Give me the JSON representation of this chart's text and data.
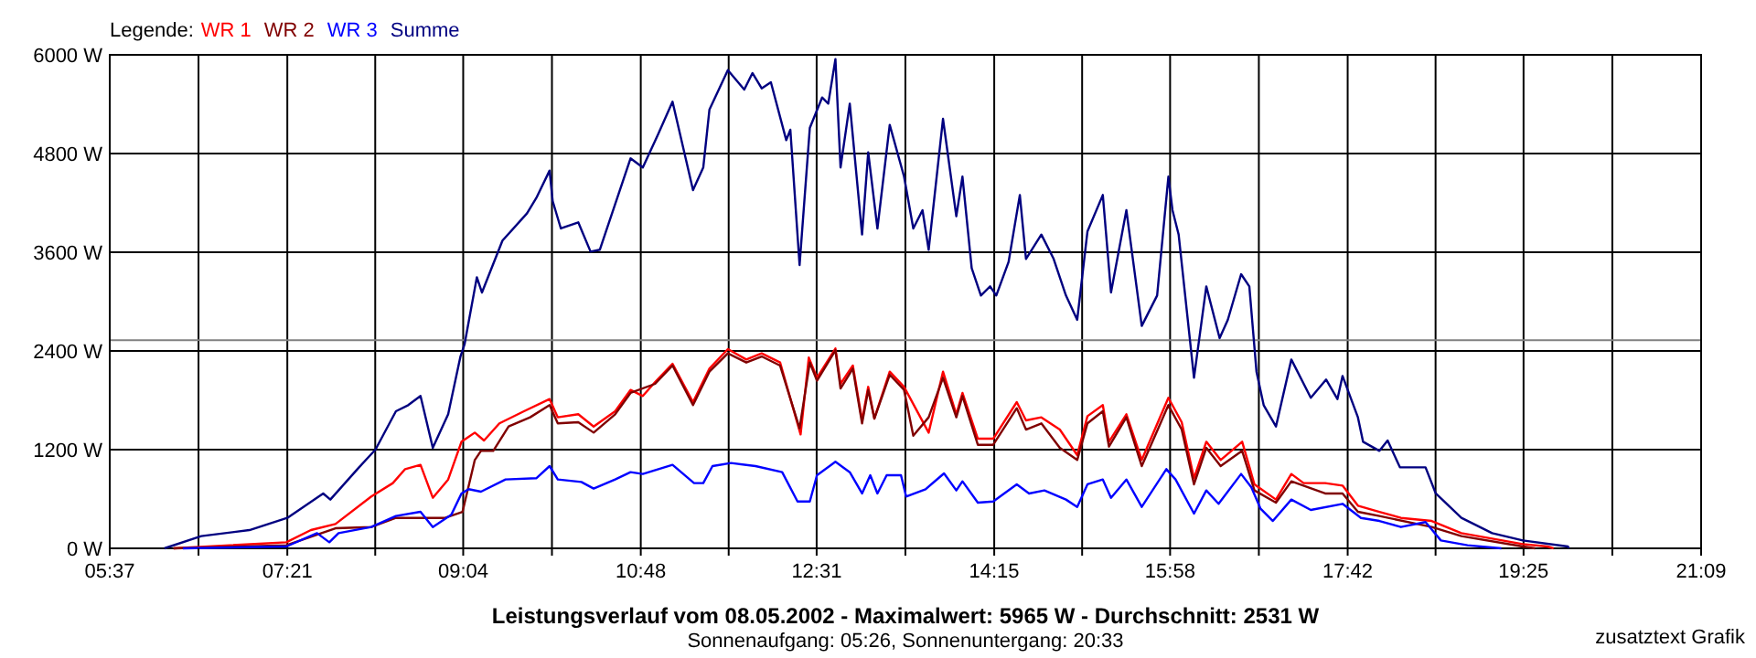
{
  "chart_data": {
    "type": "line",
    "title": "Leistungsverlauf vom 08.05.2002 - Maximalwert: 5965 W - Durchschnitt: 2531 W",
    "subtitle": "Sonnenaufgang: 05:26, Sonnenuntergang: 20:33",
    "annotations": [
      "zusatztext Grafik"
    ],
    "legend_title": "Legende:",
    "legend": "top left",
    "grid": true,
    "xlim": [
      5.6167,
      21.15
    ],
    "xticks": [
      {
        "value": 5.6167,
        "label": "05:37"
      },
      {
        "value": 6.483,
        "label": null
      },
      {
        "value": 7.35,
        "label": "07:21"
      },
      {
        "value": 8.208,
        "label": null
      },
      {
        "value": 9.0667,
        "label": "09:04"
      },
      {
        "value": 9.933,
        "label": null
      },
      {
        "value": 10.8,
        "label": "10:48"
      },
      {
        "value": 11.658,
        "label": null
      },
      {
        "value": 12.5167,
        "label": "12:31"
      },
      {
        "value": 13.383,
        "label": null
      },
      {
        "value": 14.25,
        "label": "14:15"
      },
      {
        "value": 15.108,
        "label": null
      },
      {
        "value": 15.9667,
        "label": "15:58"
      },
      {
        "value": 16.833,
        "label": null
      },
      {
        "value": 17.7,
        "label": "17:42"
      },
      {
        "value": 18.558,
        "label": null
      },
      {
        "value": 19.4167,
        "label": "19:25"
      },
      {
        "value": 20.283,
        "label": null
      },
      {
        "value": 21.15,
        "label": "21:09"
      }
    ],
    "ylim": [
      0,
      6000
    ],
    "yticks": [
      {
        "value": 0,
        "label": "0 W"
      },
      {
        "value": 1200,
        "label": "1200 W"
      },
      {
        "value": 2400,
        "label": "2400 W"
      },
      {
        "value": 3600,
        "label": "3600 W"
      },
      {
        "value": 4800,
        "label": "4800 W"
      },
      {
        "value": 6000,
        "label": "6000 W"
      }
    ],
    "ref_lines": [
      {
        "axis": "y",
        "value": 2531,
        "color": "#808080"
      }
    ],
    "series": [
      {
        "name": "WR 1",
        "color": "#ff0000",
        "x": [
          6.24,
          7.34,
          7.58,
          7.82,
          8.17,
          8.38,
          8.5,
          8.65,
          8.77,
          8.92,
          9.05,
          9.18,
          9.27,
          9.42,
          9.66,
          9.91,
          9.99,
          10.19,
          10.34,
          10.55,
          10.7,
          10.82,
          10.94,
          11.11,
          11.31,
          11.47,
          11.65,
          11.83,
          11.98,
          12.16,
          12.36,
          12.44,
          12.52,
          12.7,
          12.75,
          12.87,
          12.96,
          13.02,
          13.08,
          13.23,
          13.37,
          13.61,
          13.75,
          13.88,
          13.94,
          14.09,
          14.24,
          14.47,
          14.56,
          14.71,
          14.89,
          15.06,
          15.16,
          15.31,
          15.37,
          15.54,
          15.69,
          15.95,
          16.08,
          16.2,
          16.32,
          16.46,
          16.67,
          16.79,
          17.0,
          17.15,
          17.27,
          17.48,
          17.65,
          17.8,
          18.01,
          18.22,
          18.52,
          18.81,
          19.41,
          19.65,
          19.71
        ],
        "values": [
          0,
          74,
          222,
          296,
          630,
          793,
          963,
          1015,
          615,
          837,
          1296,
          1407,
          1311,
          1519,
          1667,
          1815,
          1593,
          1630,
          1481,
          1667,
          1926,
          1852,
          2022,
          2244,
          1778,
          2185,
          2422,
          2296,
          2370,
          2259,
          1385,
          2319,
          2074,
          2430,
          2000,
          2222,
          1556,
          1963,
          1578,
          2148,
          1963,
          1407,
          2148,
          1630,
          1889,
          1333,
          1333,
          1778,
          1556,
          1593,
          1444,
          1133,
          1607,
          1741,
          1296,
          1630,
          1074,
          1830,
          1533,
          852,
          1296,
          1074,
          1296,
          778,
          593,
          904,
          793,
          793,
          763,
          519,
          444,
          370,
          333,
          185,
          52,
          22,
          0
        ]
      },
      {
        "name": "WR 2",
        "color": "#800000",
        "x": [
          6.24,
          7.34,
          7.82,
          8.17,
          8.41,
          8.89,
          9.06,
          9.18,
          9.24,
          9.36,
          9.51,
          9.72,
          9.91,
          9.99,
          10.19,
          10.34,
          10.55,
          10.7,
          10.94,
          11.11,
          11.31,
          11.47,
          11.65,
          11.83,
          11.98,
          12.16,
          12.35,
          12.45,
          12.52,
          12.7,
          12.75,
          12.87,
          12.96,
          13.02,
          13.08,
          13.23,
          13.37,
          13.46,
          13.61,
          13.75,
          13.88,
          13.94,
          14.09,
          14.24,
          14.47,
          14.56,
          14.71,
          14.89,
          15.06,
          15.16,
          15.31,
          15.37,
          15.54,
          15.69,
          15.95,
          16.08,
          16.2,
          16.32,
          16.46,
          16.67,
          16.79,
          17.0,
          17.15,
          17.48,
          17.65,
          17.8,
          18.01,
          18.52,
          18.81,
          19.41,
          19.53
        ],
        "values": [
          0,
          37,
          244,
          259,
          370,
          370,
          444,
          1074,
          1185,
          1185,
          1481,
          1593,
          1741,
          1519,
          1533,
          1407,
          1630,
          1889,
          2000,
          2222,
          1741,
          2148,
          2370,
          2259,
          2333,
          2222,
          1459,
          2259,
          2037,
          2407,
          1944,
          2185,
          1519,
          1926,
          1578,
          2111,
          1926,
          1370,
          1593,
          2074,
          1593,
          1852,
          1259,
          1259,
          1704,
          1444,
          1519,
          1222,
          1074,
          1519,
          1667,
          1237,
          1593,
          1000,
          1741,
          1444,
          778,
          1222,
          1000,
          1185,
          704,
          556,
          815,
          667,
          667,
          444,
          393,
          259,
          148,
          22,
          0
        ]
      },
      {
        "name": "WR 3",
        "color": "#0000ff",
        "x": [
          6.33,
          7.34,
          7.64,
          7.76,
          7.85,
          8.17,
          8.41,
          8.65,
          8.77,
          8.95,
          9.05,
          9.12,
          9.24,
          9.48,
          9.78,
          9.91,
          9.99,
          10.22,
          10.34,
          10.55,
          10.7,
          10.82,
          11.11,
          11.32,
          11.41,
          11.5,
          11.68,
          11.92,
          12.18,
          12.33,
          12.45,
          12.52,
          12.7,
          12.84,
          12.96,
          13.04,
          13.11,
          13.2,
          13.34,
          13.39,
          13.58,
          13.76,
          13.88,
          13.94,
          14.09,
          14.24,
          14.47,
          14.59,
          14.74,
          14.95,
          15.06,
          15.16,
          15.31,
          15.39,
          15.54,
          15.69,
          15.93,
          16.02,
          16.2,
          16.32,
          16.44,
          16.66,
          16.76,
          16.85,
          16.97,
          17.15,
          17.34,
          17.65,
          17.83,
          18.01,
          18.22,
          18.46,
          18.61,
          18.87,
          19.2
        ],
        "values": [
          0,
          22,
          185,
          74,
          185,
          259,
          393,
          444,
          259,
          407,
          667,
          719,
          689,
          837,
          852,
          1000,
          837,
          807,
          726,
          837,
          926,
          904,
          1015,
          793,
          793,
          1000,
          1037,
          1000,
          926,
          570,
          570,
          889,
          1052,
          926,
          667,
          889,
          667,
          889,
          889,
          630,
          719,
          911,
          704,
          815,
          556,
          570,
          778,
          667,
          704,
          593,
          504,
          778,
          837,
          615,
          837,
          504,
          963,
          837,
          422,
          704,
          541,
          904,
          741,
          481,
          333,
          593,
          467,
          541,
          370,
          333,
          259,
          319,
          96,
          37,
          0
        ]
      },
      {
        "name": "Summe",
        "color": "#000080",
        "x": [
          6.15,
          6.51,
          6.98,
          7.35,
          7.7,
          7.77,
          8.05,
          8.21,
          8.41,
          8.53,
          8.65,
          8.77,
          8.92,
          9.04,
          9.08,
          9.2,
          9.25,
          9.45,
          9.69,
          9.78,
          9.91,
          9.94,
          10.02,
          10.19,
          10.31,
          10.4,
          10.55,
          10.7,
          10.82,
          10.97,
          11.11,
          11.31,
          11.41,
          11.47,
          11.65,
          11.81,
          11.89,
          11.98,
          12.07,
          12.22,
          12.26,
          12.35,
          12.45,
          12.57,
          12.63,
          12.7,
          12.75,
          12.84,
          12.96,
          13.02,
          13.11,
          13.23,
          13.37,
          13.46,
          13.55,
          13.61,
          13.75,
          13.88,
          13.94,
          14.03,
          14.12,
          14.21,
          14.27,
          14.39,
          14.5,
          14.56,
          14.71,
          14.83,
          14.95,
          15.06,
          15.16,
          15.31,
          15.39,
          15.54,
          15.69,
          15.84,
          15.95,
          15.99,
          16.05,
          16.2,
          16.32,
          16.45,
          16.53,
          16.66,
          16.74,
          16.81,
          16.88,
          17.0,
          17.15,
          17.34,
          17.49,
          17.6,
          17.65,
          17.8,
          17.85,
          18.01,
          18.09,
          18.21,
          18.46,
          18.56,
          18.81,
          19.11,
          19.41,
          19.85,
          19.86
        ],
        "values": [
          0,
          149,
          222,
          370,
          667,
          593,
          985,
          1200,
          1667,
          1741,
          1852,
          1222,
          1630,
          2333,
          2481,
          3296,
          3111,
          3741,
          4074,
          4259,
          4593,
          4222,
          3889,
          3963,
          3607,
          3630,
          4185,
          4741,
          4630,
          5037,
          5430,
          4356,
          4630,
          5333,
          5815,
          5578,
          5778,
          5593,
          5667,
          4963,
          5089,
          3444,
          5111,
          5481,
          5407,
          5948,
          4630,
          5407,
          3815,
          4815,
          3889,
          5148,
          4519,
          3889,
          4111,
          3630,
          5222,
          4037,
          4519,
          3407,
          3074,
          3185,
          3074,
          3481,
          4296,
          3519,
          3815,
          3519,
          3074,
          2778,
          3852,
          4296,
          3111,
          4111,
          2704,
          3074,
          4519,
          4111,
          3815,
          2074,
          3185,
          2556,
          2778,
          3333,
          3185,
          2148,
          1741,
          1481,
          2296,
          1830,
          2052,
          1815,
          2096,
          1593,
          1296,
          1185,
          1311,
          985,
          985,
          667,
          370,
          185,
          96,
          22,
          0
        ]
      }
    ]
  }
}
